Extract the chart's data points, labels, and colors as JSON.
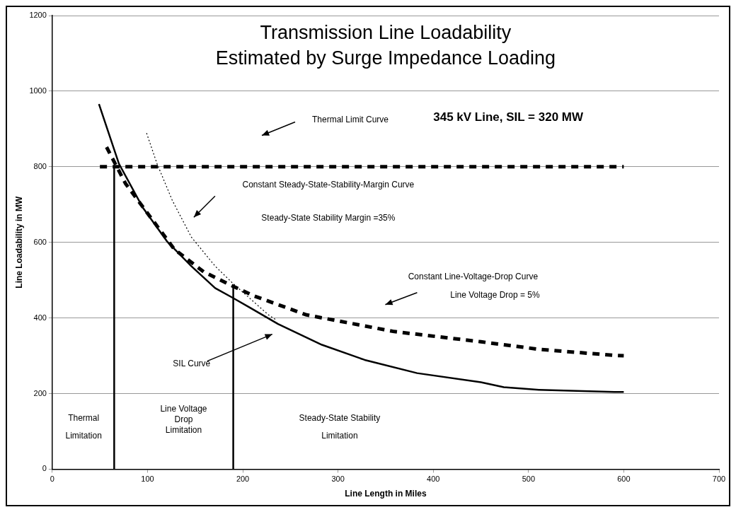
{
  "chart_data": {
    "type": "line",
    "title": "Transmission Line Loadability\nEstimated by Surge Impedance Loading",
    "subtitle": "345 kV Line, SIL = 320 MW",
    "xlabel": "Line Length in Miles",
    "ylabel": "Line Loadability in MW",
    "xlim": [
      0,
      700
    ],
    "xticks": [
      0,
      100,
      200,
      300,
      400,
      500,
      600,
      700
    ],
    "ylim": [
      0,
      1200
    ],
    "yticks": [
      0,
      200,
      400,
      600,
      800,
      1000,
      1200
    ],
    "grid": "y",
    "legend": false,
    "marker": "none",
    "series": [
      {
        "color": "#000000",
        "line_style": "solid",
        "x": [
          49,
          70,
          95,
          121,
          146,
          171,
          189,
          207,
          237,
          283,
          328,
          383,
          450,
          474,
          511,
          590,
          600
        ],
        "values": [
          966,
          808,
          692,
          601,
          537,
          479,
          454,
          428,
          384,
          329,
          289,
          254,
          230,
          217,
          210,
          204,
          204
        ]
      },
      {
        "color": "#000000",
        "line_style": "dashed",
        "x": [
          57,
          77,
          103,
          128,
          159,
          189,
          211,
          267,
          359,
          450,
          511,
          590,
          600
        ],
        "values": [
          852,
          755,
          667,
          582,
          522,
          485,
          459,
          408,
          364,
          337,
          317,
          301,
          300
        ]
      },
      {
        "color": "#000000",
        "line_style": "dashed",
        "x": [
          50,
          600
        ],
        "values": [
          800,
          800
        ]
      },
      {
        "color": "#000000",
        "line_style": "dotted",
        "x": [
          99,
          110,
          126,
          146,
          171,
          189,
          227,
          235
        ],
        "values": [
          889,
          808,
          711,
          614,
          537,
          493,
          408,
          395
        ]
      },
      {
        "color": "#000000",
        "line_style": "solid",
        "x": [
          65,
          65
        ],
        "values": [
          0,
          800
        ]
      },
      {
        "color": "#000000",
        "line_style": "solid",
        "x": [
          190,
          190
        ],
        "values": [
          0,
          485
        ]
      }
    ],
    "annotations": [
      "Thermal Limit Curve",
      "Constant Steady-State-Stability-Margin Curve",
      "Steady-State Stability Margin =35%",
      "Constant Line-Voltage-Drop Curve",
      "Line Voltage Drop = 5%",
      "SIL Curve",
      "Thermal\nLimitation",
      "Line Voltage\nDrop\nLimitation",
      "Steady-State Stability\nLimitation"
    ]
  }
}
